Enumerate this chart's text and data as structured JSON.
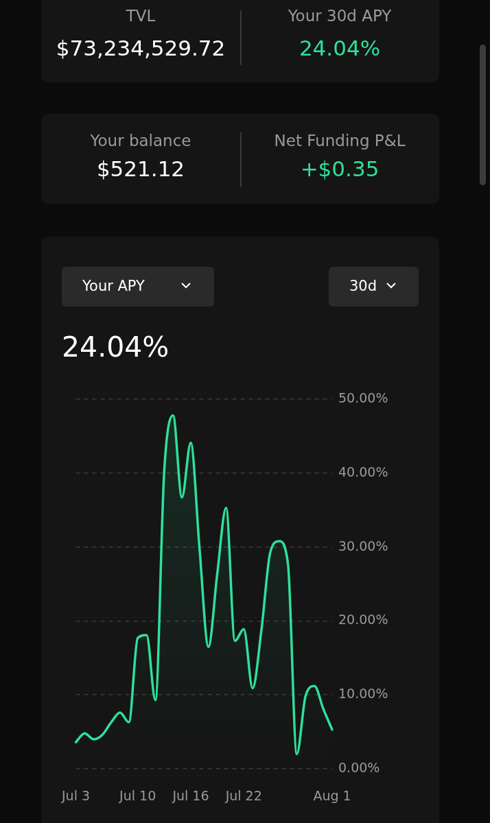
{
  "chart_data": {
    "type": "area",
    "title": "24.04%",
    "annotations": [
      "TVL",
      "$73,234,529.72",
      "Your 30d APY",
      "24.04%",
      "Your balance",
      "$521.12",
      "Net Funding P&L",
      "+$0.35",
      "Your APY",
      "30d"
    ],
    "categories": [
      "Jul 3",
      null,
      null,
      null,
      null,
      null,
      null,
      "Jul 10",
      null,
      null,
      null,
      null,
      null,
      "Jul 16",
      null,
      null,
      null,
      null,
      null,
      "Jul 22",
      null,
      null,
      null,
      null,
      null,
      null,
      null,
      null,
      null,
      "Aug 1"
    ],
    "series": [
      {
        "color": "#2fe09a",
        "values": [
          3.6,
          4.8,
          4.0,
          4.6,
          6.3,
          7.6,
          6.3,
          17.7,
          18.1,
          9.3,
          40.3,
          47.8,
          36.7,
          44.1,
          29.7,
          16.5,
          26.4,
          35.3,
          17.3,
          18.9,
          10.9,
          18.8,
          29.3,
          30.8,
          27.7,
          2.0,
          9.9,
          11.2,
          8.1,
          5.3
        ]
      }
    ],
    "ylim": [
      0,
      50
    ],
    "yticks": [
      {
        "value": 0,
        "label": "0.00%"
      },
      {
        "value": 10,
        "label": "10.00%"
      },
      {
        "value": 20,
        "label": "20.00%"
      },
      {
        "value": 30,
        "label": "30.00%"
      },
      {
        "value": 40,
        "label": "40.00%"
      },
      {
        "value": 50,
        "label": "50.00%"
      }
    ],
    "grid": "y",
    "legend": false,
    "marker": "none",
    "line_style": "solid"
  }
}
